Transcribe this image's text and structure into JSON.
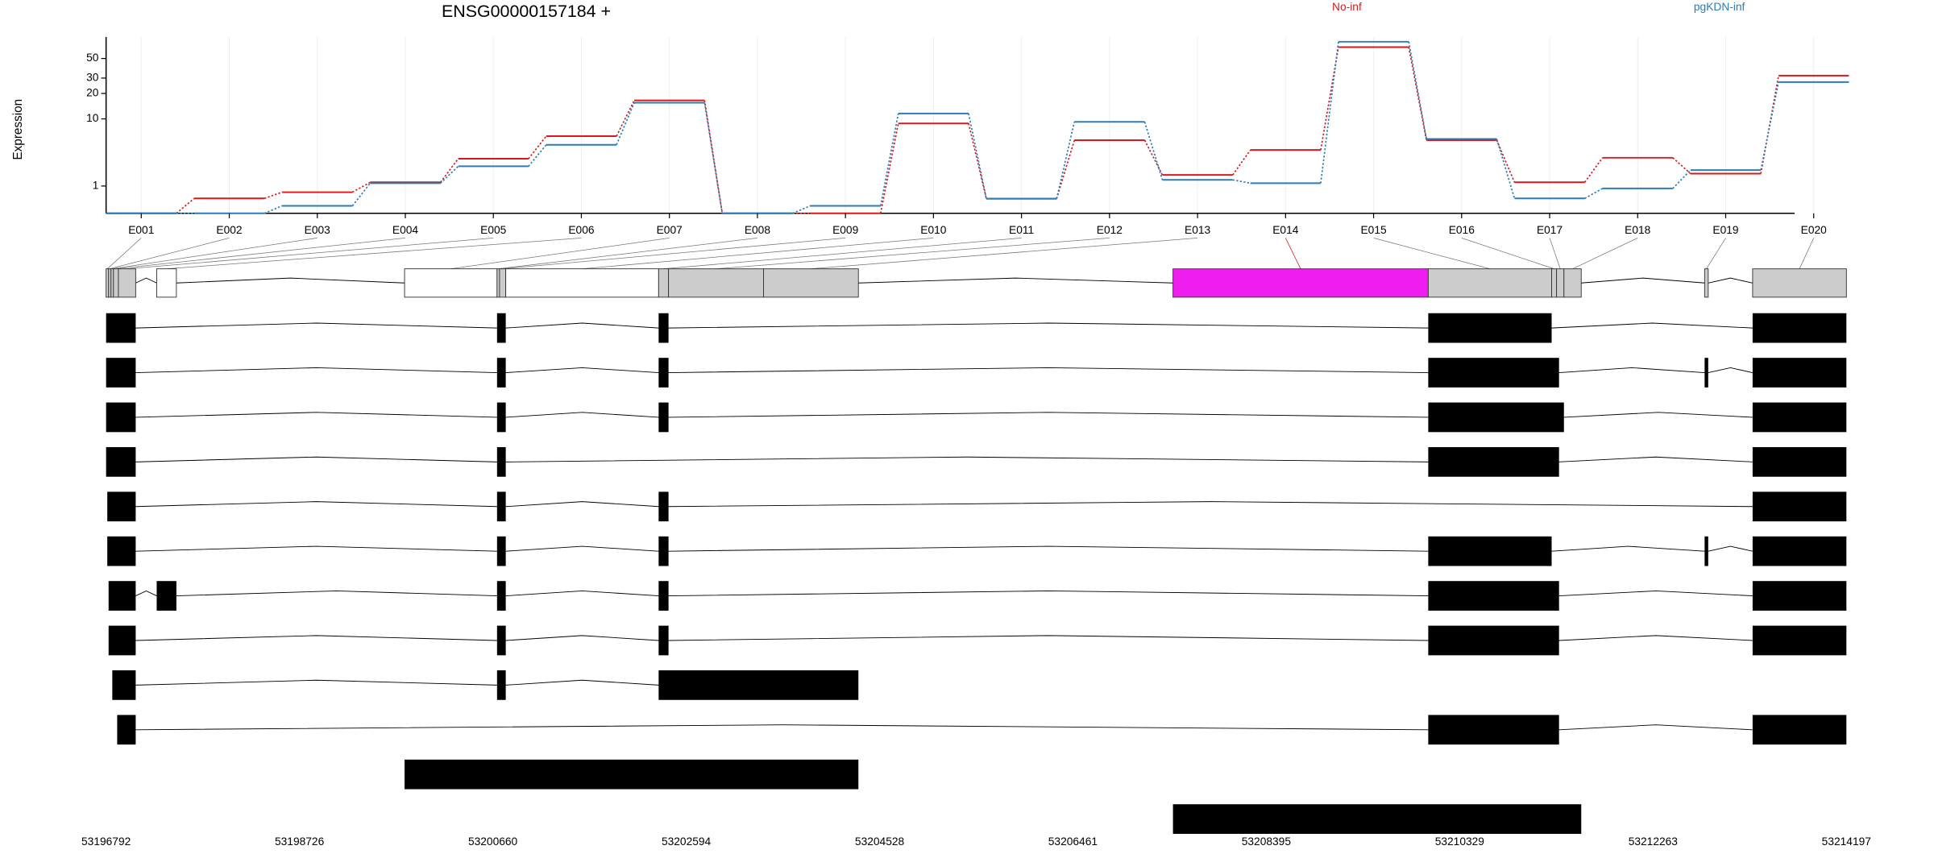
{
  "chart_data": {
    "type": "exon-usage",
    "title": "ENSG00000157184 +",
    "ylabel": "Expression",
    "yscale": "log1p",
    "ylim": [
      0,
      87
    ],
    "yticks": [
      1,
      10,
      20,
      30,
      50
    ],
    "grid": true,
    "legend": "top",
    "series": [
      {
        "name": "No-inf",
        "color": "#d7191c",
        "values": [
          0,
          0.46,
          0.71,
          1.2,
          3.0,
          6.1,
          16.6,
          0,
          0,
          8.8,
          0.45,
          5.4,
          1.65,
          4.0,
          67,
          5.4,
          1.2,
          3.1,
          1.74,
          32
        ]
      },
      {
        "name": "pgKDN-inf",
        "color": "#2c7bb6",
        "values": [
          0,
          0,
          0.21,
          1.15,
          2.3,
          4.7,
          15.6,
          0,
          0.21,
          11.6,
          0.45,
          9.2,
          1.34,
          1.15,
          77,
          5.6,
          0.46,
          0.88,
          2.0,
          27
        ]
      }
    ],
    "exons": [
      {
        "id": "E001",
        "start": 53196792,
        "end": 53196817,
        "fill": "#cccccc"
      },
      {
        "id": "E002",
        "start": 53196817,
        "end": 53196841,
        "fill": "#cccccc"
      },
      {
        "id": "E003",
        "start": 53196841,
        "end": 53196866,
        "fill": "#cccccc"
      },
      {
        "id": "E004",
        "start": 53196866,
        "end": 53196915,
        "fill": "#cccccc"
      },
      {
        "id": "E005",
        "start": 53196915,
        "end": 53197088,
        "fill": "#cccccc"
      },
      {
        "id": "E006",
        "start": 53197298,
        "end": 53197495,
        "fill": "#ffffff"
      },
      {
        "id": "E007",
        "start": 53199777,
        "end": 53200702,
        "fill": "#ffffff"
      },
      {
        "id": "E008",
        "start": 53200702,
        "end": 53200727,
        "fill": "#cccccc"
      },
      {
        "id": "E009",
        "start": 53200727,
        "end": 53200789,
        "fill": "#cccccc"
      },
      {
        "id": "E010",
        "start": 53200789,
        "end": 53202318,
        "fill": "#ffffff"
      },
      {
        "id": "E011",
        "start": 53202318,
        "end": 53202417,
        "fill": "#cccccc"
      },
      {
        "id": "E012",
        "start": 53202417,
        "end": 53203367,
        "fill": "#cccccc"
      },
      {
        "id": "E013",
        "start": 53203367,
        "end": 53204316,
        "fill": "#cccccc"
      },
      {
        "id": "E014",
        "start": 53207462,
        "end": 53210015,
        "fill": "#f01df0"
      },
      {
        "id": "E015",
        "start": 53210015,
        "end": 53211249,
        "fill": "#cccccc"
      },
      {
        "id": "E016",
        "start": 53211249,
        "end": 53211298,
        "fill": "#cccccc"
      },
      {
        "id": "E017",
        "start": 53211298,
        "end": 53211372,
        "fill": "#cccccc"
      },
      {
        "id": "E018",
        "start": 53211372,
        "end": 53211545,
        "fill": "#cccccc"
      },
      {
        "id": "E019",
        "start": 53212779,
        "end": 53212815,
        "fill": "#cccccc"
      },
      {
        "id": "E020",
        "start": 53213259,
        "end": 53214197,
        "fill": "#cccccc"
      }
    ],
    "transcripts": [
      [
        [
          53196792,
          53197088
        ],
        [
          53200702,
          53200789
        ],
        [
          53202318,
          53202417
        ],
        [
          53210015,
          53211249
        ],
        [
          53213259,
          53214197
        ]
      ],
      [
        [
          53196792,
          53197088
        ],
        [
          53200702,
          53200789
        ],
        [
          53202318,
          53202417
        ],
        [
          53210015,
          53211323
        ],
        [
          53212779,
          53212815
        ],
        [
          53213259,
          53214197
        ]
      ],
      [
        [
          53196792,
          53197088
        ],
        [
          53200702,
          53200789
        ],
        [
          53202318,
          53202417
        ],
        [
          53210015,
          53211372
        ],
        [
          53213259,
          53214197
        ]
      ],
      [
        [
          53196792,
          53197088
        ],
        [
          53200702,
          53200789
        ],
        [
          53210015,
          53211323
        ],
        [
          53213259,
          53214197
        ]
      ],
      [
        [
          53196804,
          53197088
        ],
        [
          53200702,
          53200789
        ],
        [
          53202318,
          53202417
        ],
        [
          53213259,
          53214197
        ]
      ],
      [
        [
          53196804,
          53197088
        ],
        [
          53200702,
          53200789
        ],
        [
          53202318,
          53202417
        ],
        [
          53210015,
          53211249
        ],
        [
          53212779,
          53212815
        ],
        [
          53213259,
          53214197
        ]
      ],
      [
        [
          53196817,
          53197088
        ],
        [
          53197298,
          53197495
        ],
        [
          53200702,
          53200789
        ],
        [
          53202318,
          53202417
        ],
        [
          53210015,
          53211323
        ],
        [
          53213259,
          53214197
        ]
      ],
      [
        [
          53196817,
          53197088
        ],
        [
          53200702,
          53200789
        ],
        [
          53202318,
          53202417
        ],
        [
          53210015,
          53211323
        ],
        [
          53213259,
          53214197
        ]
      ],
      [
        [
          53196854,
          53197088
        ],
        [
          53200702,
          53200789
        ],
        [
          53202318,
          53204316
        ]
      ],
      [
        [
          53196903,
          53197088
        ],
        [
          53210015,
          53211323
        ],
        [
          53213259,
          53214197
        ]
      ],
      [
        [
          53199777,
          53204316
        ]
      ],
      [
        [
          53207462,
          53211545
        ]
      ]
    ],
    "xlim": [
      53196792,
      53214197
    ],
    "xticks": [
      53196792,
      53198726,
      53200660,
      53202594,
      53204528,
      53206461,
      53208395,
      53210329,
      53212263,
      53214197
    ]
  }
}
